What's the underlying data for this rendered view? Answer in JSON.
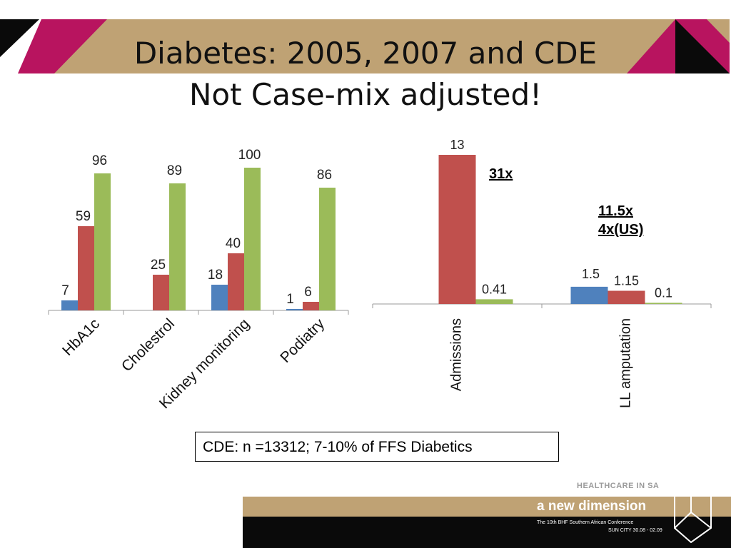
{
  "slide": {
    "title": "Diabetes: 2005, 2007 and CDE",
    "subtitle": "Not Case-mix adjusted!",
    "note": "CDE: n =13312; 7-10% of FFS Diabetics",
    "annotations": [
      "31x",
      "11.5x",
      "4x(US)"
    ],
    "footer": {
      "tagline": "HEALTHCARE IN SA",
      "brand": "a new dimension",
      "conference": "The 10th BHF Southern African Conference",
      "venue": "SUN CITY 30.08 - 02.09"
    },
    "colors": {
      "gold": "#bfa274",
      "magenta": "#b8145f",
      "black": "#0a0a0a"
    }
  },
  "chart_data": [
    {
      "type": "bar",
      "categories": [
        "HbA1c",
        "Cholestrol",
        "Kidney monitoring",
        "Podiatry"
      ],
      "series": [
        {
          "values": [
            7,
            null,
            18,
            1
          ],
          "color": "#4f81bd"
        },
        {
          "values": [
            59,
            25,
            40,
            6
          ],
          "color": "#c0504d"
        },
        {
          "values": [
            96,
            89,
            100,
            86
          ],
          "color": "#9bbb59"
        }
      ],
      "data_labels": [
        [
          "7",
          "",
          "18",
          "1"
        ],
        [
          "59",
          "25",
          "40",
          "6"
        ],
        [
          "96",
          "89",
          "100",
          "86"
        ]
      ],
      "ylim": [
        0,
        100
      ],
      "grid": false,
      "legend": "none"
    },
    {
      "type": "bar",
      "categories": [
        "Admissions",
        "LL amputation"
      ],
      "series": [
        {
          "values": [
            null,
            1.5
          ],
          "color": "#4f81bd"
        },
        {
          "values": [
            13,
            1.15
          ],
          "color": "#c0504d"
        },
        {
          "values": [
            0.41,
            0.1
          ],
          "color": "#9bbb59"
        }
      ],
      "data_labels": [
        [
          "",
          "1.5"
        ],
        [
          "13",
          "1.15"
        ],
        [
          "0.41",
          "0.1"
        ]
      ],
      "ylim": [
        0,
        13
      ],
      "grid": false,
      "legend": "none"
    }
  ]
}
